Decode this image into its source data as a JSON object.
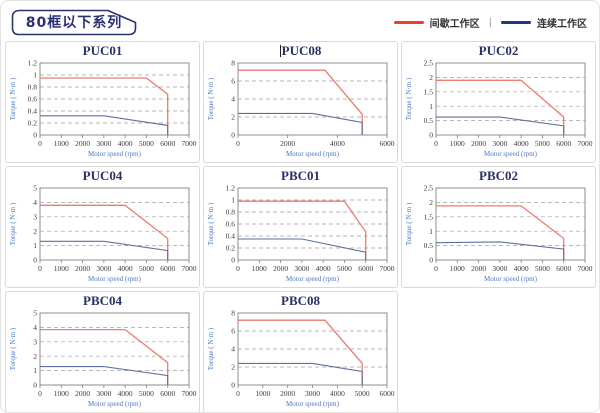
{
  "page": {
    "title": "80框以下系列"
  },
  "legend": {
    "separator": "|",
    "items": [
      {
        "label": "间歇工作区",
        "color": "#e8432a"
      },
      {
        "label": "连续工作区",
        "color": "#1e3a7c"
      }
    ]
  },
  "colors": {
    "intermittent": "#ee7b70",
    "continuous": "#5f6fa0",
    "grid": "#a0a0a0",
    "plot_border": "#808080",
    "axis_label": "#4a79c0",
    "chart_title": "#2a3168",
    "tag_border": "#2b3270"
  },
  "chart_data": [
    {
      "type": "line",
      "title": "PUC01",
      "cursor": false,
      "xlabel": "Motor speed (rpm)",
      "ylabel": "Torque ( N·m )",
      "xlim": [
        0,
        7000
      ],
      "ylim": [
        0,
        1.2
      ],
      "xticks": [
        0,
        1000,
        2000,
        3000,
        4000,
        5000,
        6000,
        7000
      ],
      "yticks": [
        0,
        0.2,
        0.4,
        0.6,
        0.8,
        1,
        1.2
      ],
      "series": [
        {
          "name": "间歇工作区",
          "color_role": "intermittent",
          "points": [
            [
              0,
              0.95
            ],
            [
              5000,
              0.95
            ],
            [
              6000,
              0.68
            ],
            [
              6000,
              0
            ]
          ]
        },
        {
          "name": "连续工作区",
          "color_role": "continuous",
          "points": [
            [
              0,
              0.32
            ],
            [
              3000,
              0.32
            ],
            [
              6000,
              0.16
            ],
            [
              6000,
              0
            ]
          ]
        }
      ]
    },
    {
      "type": "line",
      "title": "PUC08",
      "cursor": true,
      "xlabel": "Motor speed (rpm)",
      "ylabel": "Torque ( N·m )",
      "xlim": [
        0,
        6000
      ],
      "ylim": [
        0,
        8
      ],
      "xticks": [
        0,
        2000,
        4000,
        6000
      ],
      "yticks": [
        0,
        2,
        4,
        6,
        8
      ],
      "series": [
        {
          "name": "间歇工作区",
          "color_role": "intermittent",
          "points": [
            [
              0,
              7.2
            ],
            [
              3500,
              7.2
            ],
            [
              5000,
              2.3
            ],
            [
              5000,
              0
            ]
          ]
        },
        {
          "name": "连续工作区",
          "color_role": "continuous",
          "points": [
            [
              0,
              2.4
            ],
            [
              3000,
              2.4
            ],
            [
              5000,
              1.4
            ],
            [
              5000,
              0
            ]
          ]
        }
      ]
    },
    {
      "type": "line",
      "title": "PUC02",
      "cursor": false,
      "xlabel": "Motor speed (rpm)",
      "ylabel": "Torque ( N·m )",
      "xlim": [
        0,
        7000
      ],
      "ylim": [
        0,
        2.5
      ],
      "xticks": [
        0,
        1000,
        2000,
        3000,
        4000,
        5000,
        6000,
        7000
      ],
      "yticks": [
        0,
        0.5,
        1,
        1.5,
        2,
        2.5
      ],
      "series": [
        {
          "name": "间歇工作区",
          "color_role": "intermittent",
          "points": [
            [
              0,
              1.9
            ],
            [
              4000,
              1.9
            ],
            [
              6000,
              0.62
            ],
            [
              6000,
              0
            ]
          ]
        },
        {
          "name": "连续工作区",
          "color_role": "continuous",
          "points": [
            [
              0,
              0.62
            ],
            [
              3000,
              0.62
            ],
            [
              6000,
              0.32
            ],
            [
              6000,
              0
            ]
          ]
        }
      ]
    },
    {
      "type": "line",
      "title": "PUC04",
      "cursor": false,
      "xlabel": "Motor speed (rpm)",
      "ylabel": "Torque ( N·m )",
      "xlim": [
        0,
        7000
      ],
      "ylim": [
        0,
        5
      ],
      "xticks": [
        0,
        1000,
        2000,
        3000,
        4000,
        5000,
        6000,
        7000
      ],
      "yticks": [
        0,
        1,
        2,
        3,
        4,
        5
      ],
      "series": [
        {
          "name": "间歇工作区",
          "color_role": "intermittent",
          "points": [
            [
              0,
              3.8
            ],
            [
              4000,
              3.8
            ],
            [
              6000,
              1.5
            ],
            [
              6000,
              0
            ]
          ]
        },
        {
          "name": "连续工作区",
          "color_role": "continuous",
          "points": [
            [
              0,
              1.3
            ],
            [
              3000,
              1.3
            ],
            [
              6000,
              0.65
            ],
            [
              6000,
              0
            ]
          ]
        }
      ]
    },
    {
      "type": "line",
      "title": "PBC01",
      "cursor": false,
      "xlabel": "Motor speed (rpm)",
      "ylabel": "Torque ( N·m )",
      "xlim": [
        0,
        7000
      ],
      "ylim": [
        0,
        1.2
      ],
      "xticks": [
        0,
        1000,
        2000,
        3000,
        4000,
        5000,
        6000,
        7000
      ],
      "yticks": [
        0,
        0.2,
        0.4,
        0.6,
        0.8,
        1,
        1.2
      ],
      "series": [
        {
          "name": "间歇工作区",
          "color_role": "intermittent",
          "points": [
            [
              0,
              0.98
            ],
            [
              5000,
              0.98
            ],
            [
              6000,
              0.47
            ],
            [
              6000,
              0
            ]
          ]
        },
        {
          "name": "连续工作区",
          "color_role": "continuous",
          "points": [
            [
              0,
              0.35
            ],
            [
              3000,
              0.35
            ],
            [
              6000,
              0.13
            ],
            [
              6000,
              0
            ]
          ]
        }
      ]
    },
    {
      "type": "line",
      "title": "PBC02",
      "cursor": false,
      "xlabel": "Motor speed (rpm)",
      "ylabel": "Torque ( N·m )",
      "xlim": [
        0,
        7000
      ],
      "ylim": [
        0,
        2.5
      ],
      "xticks": [
        0,
        1000,
        2000,
        3000,
        4000,
        5000,
        6000,
        7000
      ],
      "yticks": [
        0,
        0.5,
        1,
        1.5,
        2,
        2.5
      ],
      "series": [
        {
          "name": "间歇工作区",
          "color_role": "intermittent",
          "points": [
            [
              0,
              1.88
            ],
            [
              4000,
              1.88
            ],
            [
              6000,
              0.75
            ],
            [
              6000,
              0
            ]
          ]
        },
        {
          "name": "连续工作区",
          "color_role": "continuous",
          "points": [
            [
              0,
              0.6
            ],
            [
              3000,
              0.63
            ],
            [
              6000,
              0.38
            ],
            [
              6000,
              0
            ]
          ]
        }
      ]
    },
    {
      "type": "line",
      "title": "PBC04",
      "cursor": false,
      "xlabel": "Motor speed (rpm)",
      "ylabel": "Torque ( N·m )",
      "xlim": [
        0,
        7000
      ],
      "ylim": [
        0,
        5
      ],
      "xticks": [
        0,
        1000,
        2000,
        3000,
        4000,
        5000,
        6000,
        7000
      ],
      "yticks": [
        0,
        1,
        2,
        3,
        4,
        5
      ],
      "series": [
        {
          "name": "间歇工作区",
          "color_role": "intermittent",
          "points": [
            [
              0,
              3.85
            ],
            [
              4000,
              3.85
            ],
            [
              6000,
              1.55
            ],
            [
              6000,
              0
            ]
          ]
        },
        {
          "name": "连续工作区",
          "color_role": "continuous",
          "points": [
            [
              0,
              1.28
            ],
            [
              3000,
              1.28
            ],
            [
              6000,
              0.65
            ],
            [
              6000,
              0
            ]
          ]
        }
      ]
    },
    {
      "type": "line",
      "title": "PBC08",
      "cursor": false,
      "xlabel": "Motor speed (rpm)",
      "ylabel": "Torque ( N·m )",
      "xlim": [
        0,
        6000
      ],
      "ylim": [
        0,
        8
      ],
      "xticks": [
        0,
        1000,
        2000,
        3000,
        4000,
        5000,
        6000
      ],
      "yticks": [
        0,
        2,
        4,
        6,
        8
      ],
      "series": [
        {
          "name": "间歇工作区",
          "color_role": "intermittent",
          "points": [
            [
              0,
              7.2
            ],
            [
              3500,
              7.2
            ],
            [
              5000,
              2.4
            ],
            [
              5000,
              0
            ]
          ]
        },
        {
          "name": "连续工作区",
          "color_role": "continuous",
          "points": [
            [
              0,
              2.4
            ],
            [
              3000,
              2.4
            ],
            [
              5000,
              1.5
            ],
            [
              5000,
              0
            ]
          ]
        }
      ]
    }
  ]
}
